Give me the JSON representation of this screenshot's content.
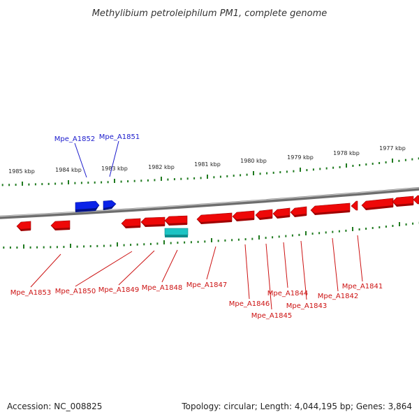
{
  "title": "Methylibium petroleiphilum PM1, complete genome",
  "accession_label": "Accession: NC_008825",
  "topology_label": "Topology: circular; Length: 4,044,195 bp; Genes: 3,864",
  "colors": {
    "forward_gene": "#0a22e8",
    "reverse_gene": "#ee0808",
    "rna_gene": "#1cc4c4",
    "tick": "#1f7a1f",
    "backbone": "#8a8a8a",
    "forward_label": "#1a1acc",
    "reverse_label": "#cc1111"
  },
  "ticks": [
    "1985 kbp",
    "1984 kbp",
    "1983 kbp",
    "1982 kbp",
    "1981 kbp",
    "1980 kbp",
    "1979 kbp",
    "1978 kbp",
    "1977 kbp"
  ],
  "forward_genes": [
    "Mpe_A1852",
    "Mpe_A1851"
  ],
  "reverse_genes": [
    "Mpe_A1853",
    "Mpe_A1850",
    "Mpe_A1849",
    "Mpe_A1848",
    "Mpe_A1847",
    "Mpe_A1846",
    "Mpe_A1845",
    "Mpe_A1844",
    "Mpe_A1843",
    "Mpe_A1842",
    "Mpe_A1841"
  ]
}
